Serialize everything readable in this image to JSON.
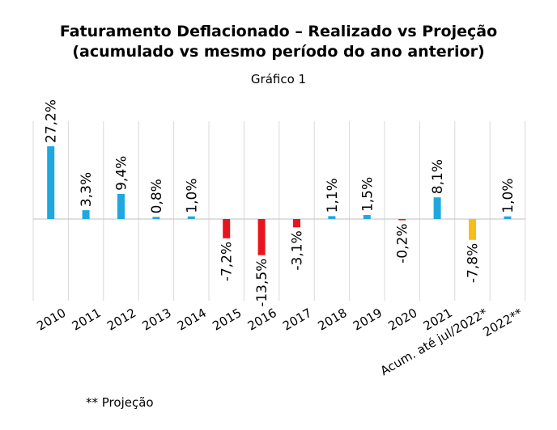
{
  "header": {
    "title_line1": "Faturamento Deflacionado – Realizado vs Projeção",
    "title_line2": "(acumulado vs mesmo período do ano anterior)",
    "subtitle": "Gráfico 1"
  },
  "footnote": "** Projeção",
  "colors": {
    "blue": "#1FA7E0",
    "red": "#E8151E",
    "orange": "#F6BE1B",
    "grid": "#D9D9D9",
    "zero_line": "#BFBFBF"
  },
  "chart_data": {
    "type": "bar",
    "categories": [
      "2010",
      "2011",
      "2012",
      "2013",
      "2014",
      "2015",
      "2016",
      "2017",
      "2018",
      "2019",
      "2020",
      "2021",
      "Acum. até jul/2022*",
      "2022**"
    ],
    "values": [
      27.2,
      3.3,
      9.4,
      0.8,
      1.0,
      -7.2,
      -13.5,
      -3.1,
      1.1,
      1.5,
      -0.2,
      8.1,
      -7.8,
      1.0
    ],
    "data_labels": [
      "27,2%",
      "3,3%",
      "9,4%",
      "0,8%",
      "1,0%",
      "-7,2%",
      "-13,5%",
      "-3,1%",
      "1,1%",
      "1,5%",
      "-0,2%",
      "8,1%",
      "-7,8%",
      "1,0%"
    ],
    "bar_colors": [
      "blue",
      "blue",
      "blue",
      "blue",
      "blue",
      "red",
      "red",
      "red",
      "blue",
      "blue",
      "red",
      "blue",
      "orange",
      "blue"
    ],
    "title": "Faturamento Deflacionado – Realizado vs Projeção",
    "xlabel": "",
    "ylabel": "",
    "ylim": [
      -30,
      30
    ],
    "grid": "vertical",
    "legend": "none"
  }
}
